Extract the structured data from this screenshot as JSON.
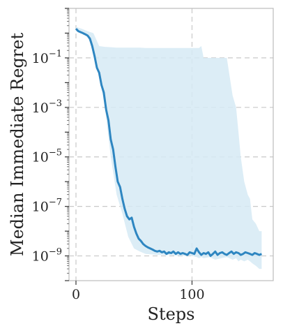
{
  "chart_data": {
    "type": "line",
    "xlabel": "Steps",
    "ylabel": "Median Immediate Regret",
    "x_scale": "linear",
    "y_scale": "log",
    "xlim": [
      -6,
      170
    ],
    "ylim": [
      1e-10,
      10
    ],
    "x_ticks": [
      0,
      100
    ],
    "x_tick_labels": [
      "0",
      "100"
    ],
    "y_ticks": [
      0.1,
      0.001,
      1e-05,
      1e-07,
      1e-09
    ],
    "y_tick_labels": [
      {
        "base": "10",
        "exp": "−1"
      },
      {
        "base": "10",
        "exp": "−3"
      },
      {
        "base": "10",
        "exp": "−5"
      },
      {
        "base": "10",
        "exp": "−7"
      },
      {
        "base": "10",
        "exp": "−9"
      }
    ],
    "grid": true,
    "legend": "none",
    "colors": {
      "line": "#2e86c1",
      "band": "#d6eaf5",
      "grid": "#c8c8c8",
      "frame": "#bcbcbc"
    },
    "series": [
      {
        "values_x": [
          0,
          2,
          5,
          8,
          10,
          12,
          14,
          16,
          18,
          20,
          22,
          24,
          26,
          28,
          30,
          32,
          34,
          36,
          38,
          40,
          42,
          44,
          46,
          48,
          50,
          52,
          54,
          56,
          58,
          60,
          62,
          64,
          66,
          68,
          70,
          72,
          74,
          76,
          78,
          80,
          82,
          84,
          86,
          88,
          90,
          92,
          94,
          96,
          98,
          100,
          102,
          104,
          106,
          108,
          110,
          112,
          114,
          116,
          118,
          120,
          122,
          124,
          126,
          128,
          130,
          132,
          134,
          136,
          138,
          140,
          142,
          144,
          146,
          148,
          150,
          152,
          154,
          156,
          158,
          160
        ],
        "values_y": [
          1.5,
          1.2,
          1.05,
          0.9,
          0.8,
          0.6,
          0.3,
          0.12,
          0.04,
          0.025,
          0.008,
          0.004,
          0.0008,
          0.0003,
          5e-05,
          2e-05,
          4e-06,
          1e-06,
          6e-07,
          2e-07,
          8e-08,
          4e-08,
          3e-08,
          3.5e-08,
          1.5e-08,
          8e-09,
          5e-09,
          4e-09,
          3e-09,
          2.5e-09,
          2.2e-09,
          2e-09,
          1.8e-09,
          1.6e-09,
          1.5e-09,
          1.6e-09,
          1.4e-09,
          1.5e-09,
          1.2e-09,
          1.4e-09,
          1.3e-09,
          1.5e-09,
          1.2e-09,
          1.4e-09,
          1.2e-09,
          1.3e-09,
          1.2e-09,
          1.1e-09,
          1.4e-09,
          1.3e-09,
          1.2e-09,
          2e-09,
          1.4e-09,
          1.1e-09,
          1.3e-09,
          1.2e-09,
          1.4e-09,
          1e-09,
          1.2e-09,
          1.5e-09,
          1.1e-09,
          1.3e-09,
          1.4e-09,
          1.2e-09,
          1.1e-09,
          1.3e-09,
          1.5e-09,
          1.2e-09,
          1.4e-09,
          1.3e-09,
          1.1e-09,
          1.2e-09,
          1.4e-09,
          1.3e-09,
          1.2e-09,
          1.1e-09,
          1.3e-09,
          1.2e-09,
          1.1e-09,
          1.2e-09
        ]
      }
    ],
    "band": {
      "values_x": [
        0,
        5,
        10,
        15,
        20,
        25,
        30,
        35,
        40,
        45,
        50,
        55,
        60,
        70,
        80,
        90,
        100,
        104,
        106,
        108,
        110,
        115,
        120,
        125,
        130,
        135,
        138,
        140,
        142,
        145,
        148,
        150,
        152,
        155,
        158,
        160
      ],
      "upper": [
        1.8,
        1.5,
        1.2,
        1.0,
        0.3,
        0.28,
        0.27,
        0.26,
        0.26,
        0.26,
        0.26,
        0.26,
        0.25,
        0.25,
        0.25,
        0.25,
        0.25,
        0.25,
        0.25,
        0.3,
        0.1,
        0.1,
        0.1,
        0.1,
        0.1,
        0.003,
        0.001,
        0.0001,
        1e-05,
        1e-06,
        3e-07,
        2e-07,
        3e-08,
        2e-08,
        1e-08,
        1e-08
      ],
      "lower": [
        1.2,
        1.0,
        0.7,
        0.2,
        0.02,
        0.001,
        1e-05,
        3e-07,
        5e-08,
        6e-09,
        2e-09,
        1.5e-09,
        1.2e-09,
        1.1e-09,
        1.1e-09,
        1e-09,
        1e-09,
        9e-10,
        8e-10,
        9e-10,
        8e-10,
        9e-10,
        7e-10,
        8e-10,
        9e-10,
        7e-10,
        8e-10,
        6e-10,
        7e-10,
        6e-10,
        7e-10,
        6e-10,
        5e-10,
        4e-10,
        3e-10,
        3e-10
      ]
    }
  }
}
